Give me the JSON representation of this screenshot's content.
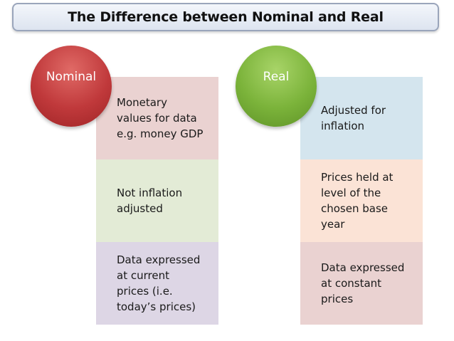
{
  "title": "The Difference between Nominal and Real",
  "colors": {
    "nominal_circle": "#c0393b",
    "real_circle": "#7bb33a",
    "box_pink": "#ead2d1",
    "box_green": "#e3ebd6",
    "box_lavender": "#ddd6e5",
    "box_blue": "#d4e5ee",
    "box_peach": "#fbe3d6",
    "title_border": "#9aa5bb"
  },
  "nominal": {
    "label": "Nominal",
    "boxes": [
      {
        "lines": [
          "Monetary",
          "values for data",
          "e.g. money GDP"
        ]
      },
      {
        "lines": [
          "Not inflation",
          "adjusted"
        ]
      },
      {
        "lines": [
          "Data expressed",
          "at current",
          "prices (i.e.",
          "today’s prices)"
        ]
      }
    ]
  },
  "real": {
    "label": "Real",
    "boxes": [
      {
        "lines": [
          "Adjusted for",
          "inflation"
        ]
      },
      {
        "lines": [
          "Prices held at",
          "level of the",
          "chosen base",
          "year"
        ]
      },
      {
        "lines": [
          "Data expressed",
          "at constant",
          "prices"
        ]
      }
    ]
  }
}
